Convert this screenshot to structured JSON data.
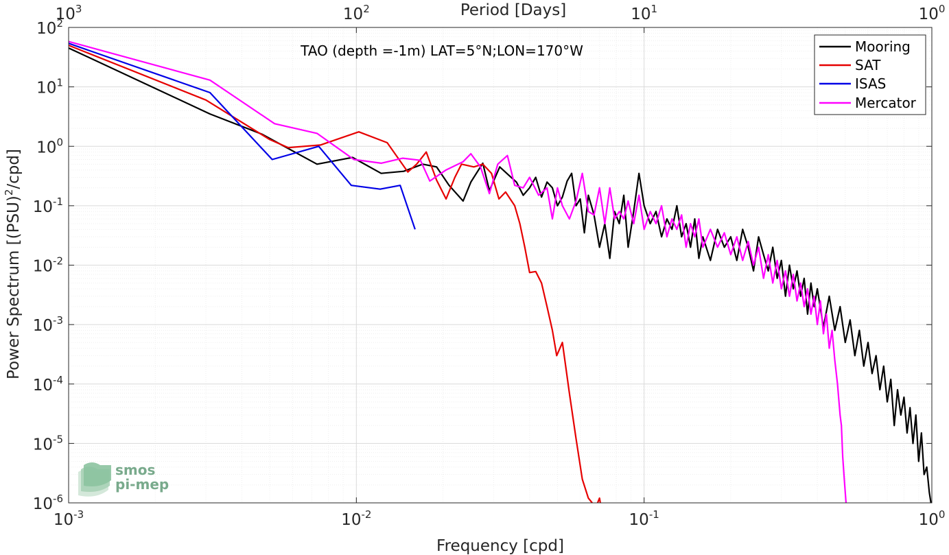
{
  "chart_data": {
    "type": "line",
    "title": "TAO (depth =-1m) LAT=5°N;LON=170°W",
    "xlabel": "Frequency [cpd]",
    "ylabel_main": "Power Spectrum [(PSU)",
    "ylabel_sup": "2",
    "ylabel_tail": "/cpd]",
    "x2label": "Period [Days]",
    "x_scale": "log",
    "y_scale": "log",
    "xlim": [
      0.001,
      1
    ],
    "ylim": [
      1e-06,
      100
    ],
    "grid": true,
    "legend_position": "top-right",
    "x_ticks": [
      {
        "value": 0.001,
        "base": "10",
        "exp": "-3"
      },
      {
        "value": 0.01,
        "base": "10",
        "exp": "-2"
      },
      {
        "value": 0.1,
        "base": "10",
        "exp": "-1"
      },
      {
        "value": 1,
        "base": "10",
        "exp": "0"
      }
    ],
    "x2_ticks": [
      {
        "value": 0.001,
        "base": "10",
        "exp": "3"
      },
      {
        "value": 0.01,
        "base": "10",
        "exp": "2"
      },
      {
        "value": 0.1,
        "base": "10",
        "exp": "1"
      },
      {
        "value": 1,
        "base": "10",
        "exp": "0"
      }
    ],
    "y_ticks": [
      {
        "value": 100,
        "base": "10",
        "exp": "2"
      },
      {
        "value": 10,
        "base": "10",
        "exp": "1"
      },
      {
        "value": 1,
        "base": "10",
        "exp": "0"
      },
      {
        "value": 0.1,
        "base": "10",
        "exp": "-1"
      },
      {
        "value": 0.01,
        "base": "10",
        "exp": "-2"
      },
      {
        "value": 0.001,
        "base": "10",
        "exp": "-3"
      },
      {
        "value": 0.0001,
        "base": "10",
        "exp": "-4"
      },
      {
        "value": 1e-05,
        "base": "10",
        "exp": "-5"
      },
      {
        "value": 1e-06,
        "base": "10",
        "exp": "-6"
      }
    ],
    "series": [
      {
        "name": "Mooring",
        "color": "#000000",
        "points": [
          [
            0.001,
            45
          ],
          [
            0.0031,
            3.5
          ],
          [
            0.0047,
            1.6
          ],
          [
            0.0073,
            0.5
          ],
          [
            0.0097,
            0.65
          ],
          [
            0.0122,
            0.35
          ],
          [
            0.0146,
            0.38
          ],
          [
            0.017,
            0.5
          ],
          [
            0.019,
            0.45
          ],
          [
            0.021,
            0.22
          ],
          [
            0.0235,
            0.12
          ],
          [
            0.025,
            0.25
          ],
          [
            0.0275,
            0.52
          ],
          [
            0.029,
            0.18
          ],
          [
            0.0315,
            0.45
          ],
          [
            0.034,
            0.32
          ],
          [
            0.036,
            0.25
          ],
          [
            0.038,
            0.15
          ],
          [
            0.04,
            0.2
          ],
          [
            0.042,
            0.3
          ],
          [
            0.044,
            0.14
          ],
          [
            0.046,
            0.25
          ],
          [
            0.048,
            0.2
          ],
          [
            0.05,
            0.1
          ],
          [
            0.052,
            0.14
          ],
          [
            0.054,
            0.26
          ],
          [
            0.056,
            0.35
          ],
          [
            0.058,
            0.1
          ],
          [
            0.06,
            0.13
          ],
          [
            0.062,
            0.035
          ],
          [
            0.064,
            0.15
          ],
          [
            0.067,
            0.07
          ],
          [
            0.07,
            0.02
          ],
          [
            0.073,
            0.05
          ],
          [
            0.076,
            0.013
          ],
          [
            0.079,
            0.08
          ],
          [
            0.082,
            0.05
          ],
          [
            0.085,
            0.15
          ],
          [
            0.088,
            0.02
          ],
          [
            0.092,
            0.08
          ],
          [
            0.096,
            0.35
          ],
          [
            0.1,
            0.1
          ],
          [
            0.105,
            0.05
          ],
          [
            0.11,
            0.08
          ],
          [
            0.115,
            0.03
          ],
          [
            0.12,
            0.06
          ],
          [
            0.125,
            0.04
          ],
          [
            0.13,
            0.1
          ],
          [
            0.135,
            0.03
          ],
          [
            0.14,
            0.05
          ],
          [
            0.145,
            0.02
          ],
          [
            0.15,
            0.06
          ],
          [
            0.155,
            0.013
          ],
          [
            0.16,
            0.03
          ],
          [
            0.17,
            0.012
          ],
          [
            0.18,
            0.04
          ],
          [
            0.19,
            0.02
          ],
          [
            0.2,
            0.03
          ],
          [
            0.21,
            0.012
          ],
          [
            0.22,
            0.04
          ],
          [
            0.23,
            0.02
          ],
          [
            0.24,
            0.008
          ],
          [
            0.25,
            0.03
          ],
          [
            0.26,
            0.015
          ],
          [
            0.27,
            0.008
          ],
          [
            0.28,
            0.02
          ],
          [
            0.29,
            0.006
          ],
          [
            0.3,
            0.012
          ],
          [
            0.31,
            0.003
          ],
          [
            0.32,
            0.01
          ],
          [
            0.33,
            0.004
          ],
          [
            0.34,
            0.008
          ],
          [
            0.35,
            0.003
          ],
          [
            0.36,
            0.006
          ],
          [
            0.37,
            0.0015
          ],
          [
            0.38,
            0.005
          ],
          [
            0.39,
            0.002
          ],
          [
            0.4,
            0.004
          ],
          [
            0.42,
            0.0009
          ],
          [
            0.44,
            0.003
          ],
          [
            0.46,
            0.0008
          ],
          [
            0.48,
            0.002
          ],
          [
            0.5,
            0.0005
          ],
          [
            0.52,
            0.0012
          ],
          [
            0.54,
            0.0003
          ],
          [
            0.56,
            0.0008
          ],
          [
            0.58,
            0.0002
          ],
          [
            0.6,
            0.0005
          ],
          [
            0.62,
            0.00015
          ],
          [
            0.64,
            0.0003
          ],
          [
            0.66,
            8e-05
          ],
          [
            0.68,
            0.0002
          ],
          [
            0.7,
            5e-05
          ],
          [
            0.72,
            0.00012
          ],
          [
            0.74,
            2e-05
          ],
          [
            0.76,
            8e-05
          ],
          [
            0.78,
            3e-05
          ],
          [
            0.8,
            6e-05
          ],
          [
            0.82,
            1.5e-05
          ],
          [
            0.84,
            4e-05
          ],
          [
            0.86,
            1e-05
          ],
          [
            0.88,
            3e-05
          ],
          [
            0.9,
            5e-06
          ],
          [
            0.92,
            1.5e-05
          ],
          [
            0.94,
            3e-06
          ],
          [
            0.96,
            4e-06
          ],
          [
            0.98,
            1.5e-06
          ],
          [
            1.0,
            8e-07
          ]
        ]
      },
      {
        "name": "SAT",
        "color": "#e60000",
        "points": [
          [
            0.001,
            50
          ],
          [
            0.003,
            6
          ],
          [
            0.005,
            1.3
          ],
          [
            0.0058,
            0.95
          ],
          [
            0.0075,
            1.05
          ],
          [
            0.0102,
            1.75
          ],
          [
            0.0128,
            1.15
          ],
          [
            0.0151,
            0.37
          ],
          [
            0.0162,
            0.5
          ],
          [
            0.0175,
            0.8
          ],
          [
            0.019,
            0.27
          ],
          [
            0.0205,
            0.13
          ],
          [
            0.022,
            0.3
          ],
          [
            0.0232,
            0.5
          ],
          [
            0.0256,
            0.45
          ],
          [
            0.0275,
            0.5
          ],
          [
            0.0295,
            0.35
          ],
          [
            0.0313,
            0.13
          ],
          [
            0.033,
            0.17
          ],
          [
            0.0355,
            0.1
          ],
          [
            0.037,
            0.05
          ],
          [
            0.0385,
            0.02
          ],
          [
            0.04,
            0.0075
          ],
          [
            0.042,
            0.0078
          ],
          [
            0.044,
            0.005
          ],
          [
            0.046,
            0.002
          ],
          [
            0.048,
            0.0008
          ],
          [
            0.0497,
            0.0003
          ],
          [
            0.052,
            0.0005
          ],
          [
            0.055,
            7e-05
          ],
          [
            0.058,
            1.2e-05
          ],
          [
            0.061,
            2.5e-06
          ],
          [
            0.064,
            1.2e-06
          ],
          [
            0.066,
            1e-06
          ],
          [
            0.068,
            8.5e-07
          ],
          [
            0.07,
            1.2e-06
          ],
          [
            0.071,
            8e-07
          ]
        ]
      },
      {
        "name": "ISAS",
        "color": "#0000e6",
        "points": [
          [
            0.001,
            54
          ],
          [
            0.0031,
            8
          ],
          [
            0.0051,
            0.6
          ],
          [
            0.0074,
            1.0
          ],
          [
            0.0096,
            0.22
          ],
          [
            0.0121,
            0.19
          ],
          [
            0.0142,
            0.22
          ],
          [
            0.016,
            0.04
          ]
        ]
      },
      {
        "name": "Mercator",
        "color": "#ff00ff",
        "points": [
          [
            0.001,
            58
          ],
          [
            0.0031,
            13
          ],
          [
            0.0052,
            2.4
          ],
          [
            0.0073,
            1.65
          ],
          [
            0.0098,
            0.6
          ],
          [
            0.0122,
            0.52
          ],
          [
            0.0145,
            0.63
          ],
          [
            0.0167,
            0.58
          ],
          [
            0.018,
            0.26
          ],
          [
            0.0205,
            0.4
          ],
          [
            0.0235,
            0.55
          ],
          [
            0.025,
            0.75
          ],
          [
            0.027,
            0.45
          ],
          [
            0.029,
            0.16
          ],
          [
            0.031,
            0.5
          ],
          [
            0.0335,
            0.7
          ],
          [
            0.0355,
            0.22
          ],
          [
            0.038,
            0.2
          ],
          [
            0.04,
            0.3
          ],
          [
            0.043,
            0.15
          ],
          [
            0.046,
            0.2
          ],
          [
            0.048,
            0.06
          ],
          [
            0.05,
            0.2
          ],
          [
            0.052,
            0.1
          ],
          [
            0.055,
            0.06
          ],
          [
            0.058,
            0.12
          ],
          [
            0.061,
            0.35
          ],
          [
            0.064,
            0.08
          ],
          [
            0.067,
            0.07
          ],
          [
            0.07,
            0.2
          ],
          [
            0.073,
            0.05
          ],
          [
            0.076,
            0.2
          ],
          [
            0.079,
            0.06
          ],
          [
            0.082,
            0.08
          ],
          [
            0.085,
            0.06
          ],
          [
            0.088,
            0.12
          ],
          [
            0.092,
            0.05
          ],
          [
            0.096,
            0.15
          ],
          [
            0.1,
            0.04
          ],
          [
            0.105,
            0.08
          ],
          [
            0.11,
            0.05
          ],
          [
            0.115,
            0.1
          ],
          [
            0.12,
            0.03
          ],
          [
            0.125,
            0.06
          ],
          [
            0.13,
            0.04
          ],
          [
            0.135,
            0.07
          ],
          [
            0.14,
            0.02
          ],
          [
            0.145,
            0.05
          ],
          [
            0.15,
            0.03
          ],
          [
            0.155,
            0.06
          ],
          [
            0.16,
            0.02
          ],
          [
            0.17,
            0.04
          ],
          [
            0.18,
            0.02
          ],
          [
            0.19,
            0.035
          ],
          [
            0.2,
            0.015
          ],
          [
            0.21,
            0.03
          ],
          [
            0.22,
            0.012
          ],
          [
            0.23,
            0.025
          ],
          [
            0.24,
            0.01
          ],
          [
            0.25,
            0.02
          ],
          [
            0.26,
            0.006
          ],
          [
            0.27,
            0.015
          ],
          [
            0.28,
            0.005
          ],
          [
            0.29,
            0.012
          ],
          [
            0.3,
            0.004
          ],
          [
            0.31,
            0.008
          ],
          [
            0.32,
            0.003
          ],
          [
            0.33,
            0.007
          ],
          [
            0.34,
            0.0025
          ],
          [
            0.35,
            0.005
          ],
          [
            0.36,
            0.002
          ],
          [
            0.37,
            0.004
          ],
          [
            0.38,
            0.0015
          ],
          [
            0.39,
            0.003
          ],
          [
            0.4,
            0.001
          ],
          [
            0.41,
            0.0025
          ],
          [
            0.42,
            0.0007
          ],
          [
            0.43,
            0.0015
          ],
          [
            0.44,
            0.0004
          ],
          [
            0.45,
            0.0008
          ],
          [
            0.46,
            0.00025
          ],
          [
            0.47,
            0.0001
          ],
          [
            0.48,
            3e-05
          ],
          [
            0.485,
            2e-05
          ],
          [
            0.49,
            6e-06
          ],
          [
            0.495,
            3e-06
          ],
          [
            0.5,
            1.5e-06
          ],
          [
            0.505,
            8e-07
          ]
        ]
      }
    ]
  },
  "logo": {
    "line1": "smos",
    "line2": "pi-mep"
  }
}
